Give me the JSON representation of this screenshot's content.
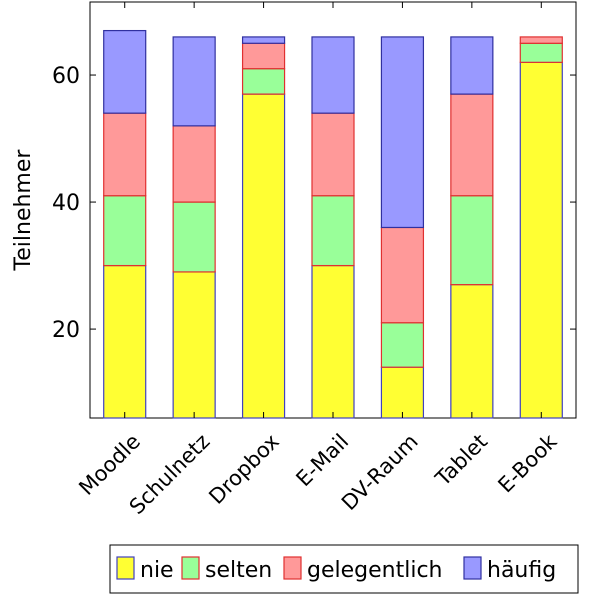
{
  "chart_data": {
    "type": "bar",
    "stacked": true,
    "categories": [
      "Moodle",
      "Schulnetz",
      "Dropbox",
      "E-Mail",
      "DV-Raum",
      "Tablet",
      "E-Book"
    ],
    "series": [
      {
        "name": "nie",
        "color": "#ffff33",
        "edge": "#4040c0",
        "values": [
          30,
          29,
          57,
          30,
          14,
          27,
          62
        ]
      },
      {
        "name": "selten",
        "color": "#99ff99",
        "edge": "#e03030",
        "values": [
          11,
          11,
          4,
          11,
          7,
          14,
          3
        ]
      },
      {
        "name": "gelegentlich",
        "color": "#ff9999",
        "edge": "#e03030",
        "values": [
          13,
          12,
          4,
          13,
          15,
          16,
          1
        ]
      },
      {
        "name": "häufig",
        "color": "#9999ff",
        "edge": "#3030a0",
        "values": [
          13,
          14,
          1,
          12,
          30,
          9,
          0
        ]
      }
    ],
    "ylabel": "Teilnehmer",
    "xlabel": "",
    "ylim": [
      6,
      71.5
    ],
    "yticks": [
      20,
      40,
      60
    ],
    "legend_position": "bottom",
    "grid": false
  }
}
